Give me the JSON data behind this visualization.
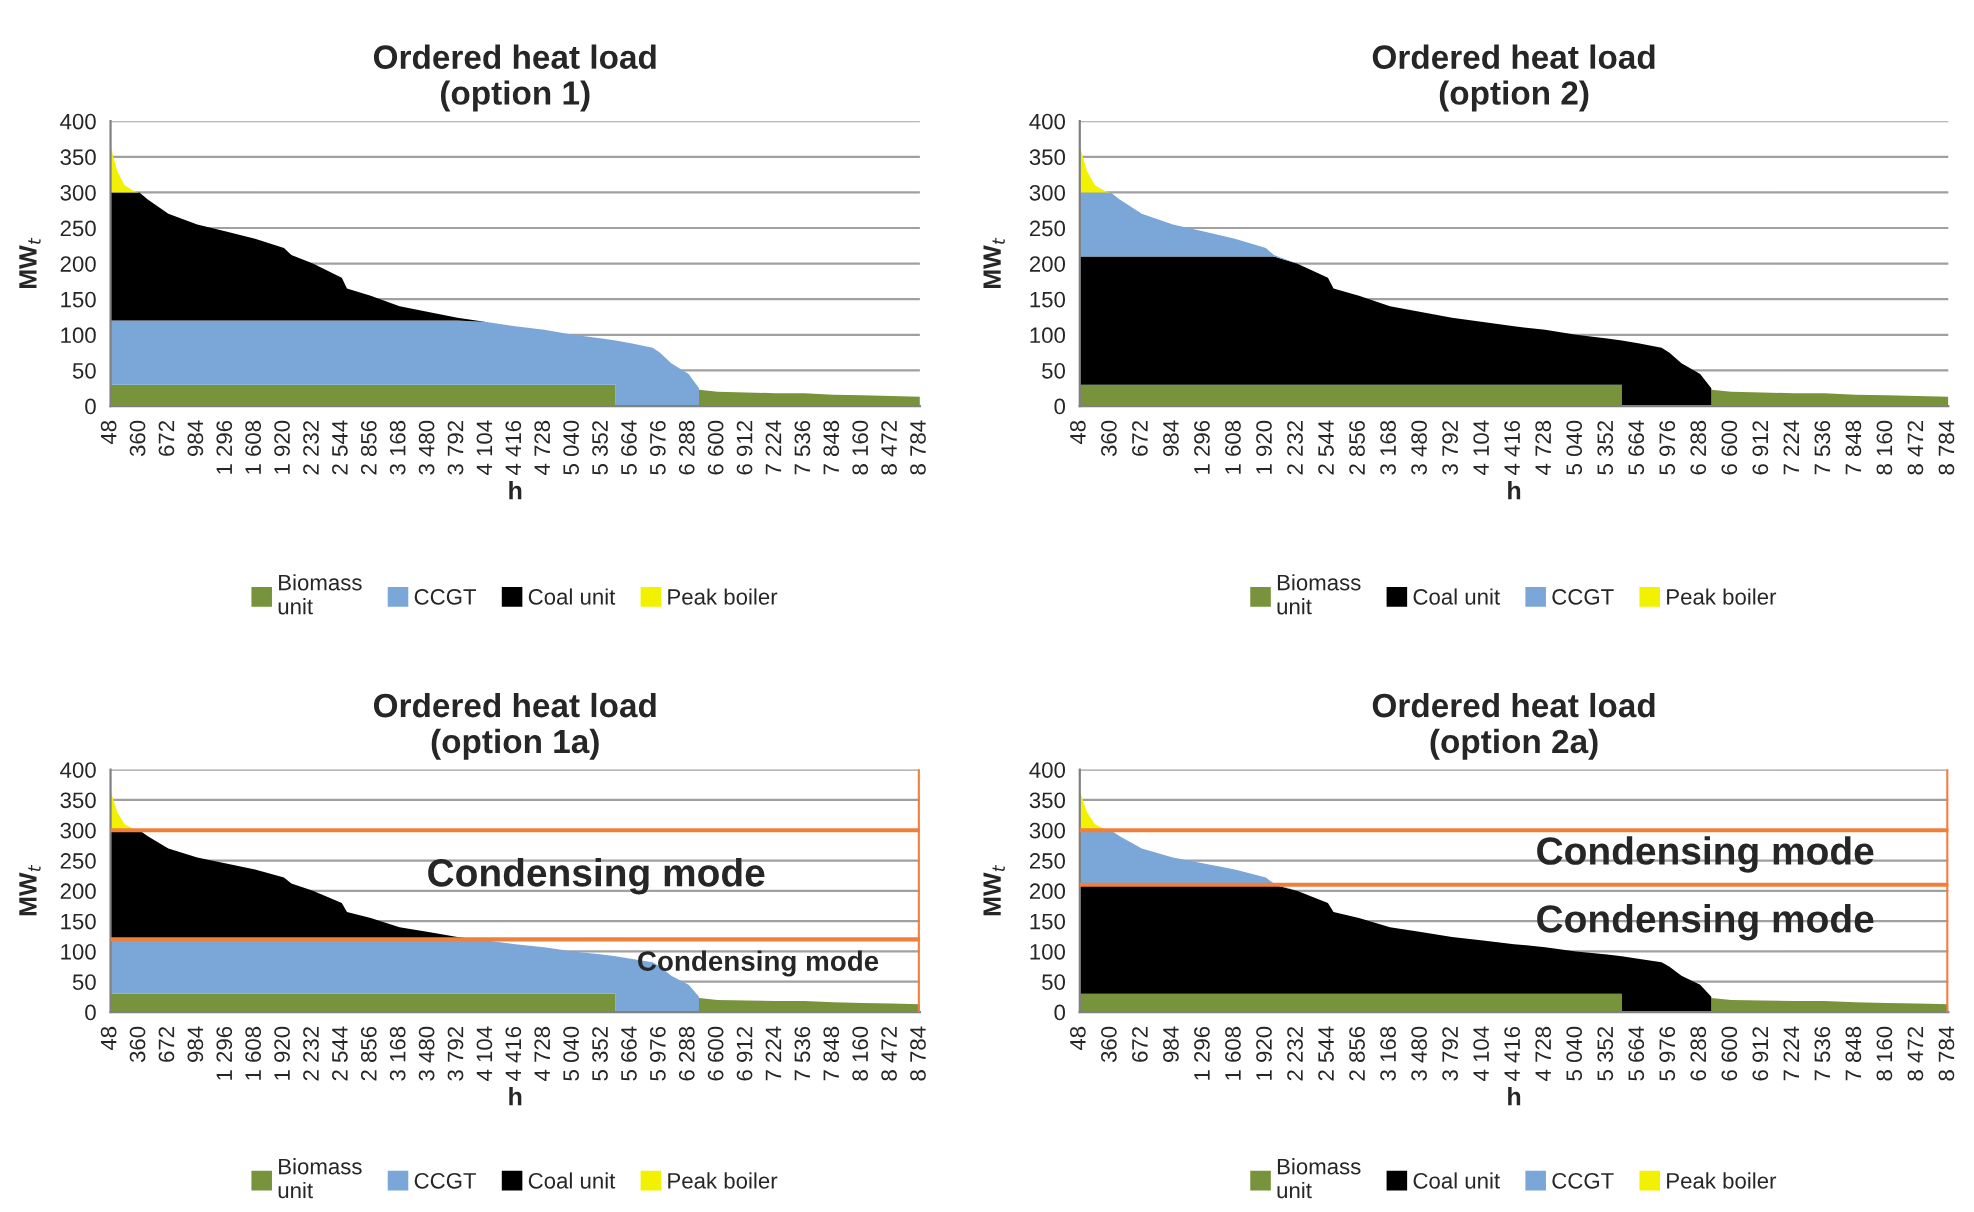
{
  "chart_data": [
    {
      "type": "area",
      "stacked": true,
      "title": "Ordered heat load\n(option 1)",
      "xlabel": "h",
      "ylabel": "MW$_{t}$",
      "grid": "y",
      "legend": "bottom",
      "x": [
        48,
        120,
        200,
        300,
        360,
        450,
        672,
        984,
        1296,
        1608,
        1920,
        2000,
        2232,
        2544,
        2600,
        2856,
        3168,
        3480,
        3792,
        4104,
        4416,
        4728,
        5040,
        5352,
        5500,
        5500,
        5664,
        5900,
        5976,
        6100,
        6288,
        6400,
        6400,
        6600,
        6912,
        7224,
        7536,
        7848,
        8160,
        8472,
        8784
      ],
      "series": [
        {
          "name": "Biomass\nunit",
          "color": "#77933c",
          "values": [
            30,
            30,
            30,
            30,
            30,
            30,
            30,
            30,
            30,
            30,
            30,
            30,
            30,
            30,
            30,
            30,
            30,
            30,
            30,
            30,
            30,
            30,
            30,
            30,
            30,
            0,
            0,
            0,
            0,
            0,
            0,
            0,
            23,
            20,
            19,
            18,
            18,
            16,
            15,
            14,
            13
          ]
        },
        {
          "name": "CCGT",
          "color": "#7aa6d8",
          "values": [
            90,
            90,
            90,
            90,
            90,
            90,
            90,
            90,
            90,
            90,
            90,
            90,
            90,
            90,
            90,
            90,
            90,
            90,
            90,
            88,
            82,
            77,
            70,
            65,
            62,
            92,
            88,
            82,
            75,
            60,
            45,
            25,
            0,
            0,
            0,
            0,
            0,
            0,
            0,
            0,
            0
          ]
        },
        {
          "name": "Coal unit",
          "color": "#000000",
          "values": [
            180,
            180,
            180,
            180,
            180,
            170,
            150,
            135,
            125,
            115,
            102,
            92,
            80,
            60,
            45,
            35,
            20,
            12,
            4,
            0,
            0,
            0,
            0,
            0,
            0,
            0,
            0,
            0,
            0,
            0,
            0,
            0,
            0,
            0,
            0,
            0,
            0,
            0,
            0,
            0,
            0
          ]
        },
        {
          "name": "Peak boiler",
          "color": "#f2f200",
          "values": [
            65,
            30,
            10,
            2,
            0,
            0,
            0,
            0,
            0,
            0,
            0,
            0,
            0,
            0,
            0,
            0,
            0,
            0,
            0,
            0,
            0,
            0,
            0,
            0,
            0,
            0,
            0,
            0,
            0,
            0,
            0,
            0,
            0,
            0,
            0,
            0,
            0,
            0,
            0,
            0,
            0
          ]
        }
      ],
      "xlim": [
        48,
        8784
      ],
      "ylim": [
        0,
        400
      ],
      "yticks": [
        0,
        50,
        100,
        150,
        200,
        250,
        300,
        350,
        400
      ],
      "xticks": [
        48,
        360,
        672,
        984,
        {
          "value": 1296,
          "label": "1 296"
        },
        {
          "value": 1608,
          "label": "1 608"
        },
        {
          "value": 1920,
          "label": "1 920"
        },
        {
          "value": 2232,
          "label": "2 232"
        },
        {
          "value": 2544,
          "label": "2 544"
        },
        {
          "value": 2856,
          "label": "2 856"
        },
        {
          "value": 3168,
          "label": "3 168"
        },
        {
          "value": 3480,
          "label": "3 480"
        },
        {
          "value": 3792,
          "label": "3 792"
        },
        {
          "value": 4104,
          "label": "4 104"
        },
        {
          "value": 4416,
          "label": "4 416"
        },
        {
          "value": 4728,
          "label": "4 728"
        },
        {
          "value": 5040,
          "label": "5 040"
        },
        {
          "value": 5352,
          "label": "5 352"
        },
        {
          "value": 5664,
          "label": "5 664"
        },
        {
          "value": 5976,
          "label": "5 976"
        },
        {
          "value": 6288,
          "label": "6 288"
        },
        {
          "value": 6600,
          "label": "6 600"
        },
        {
          "value": 6912,
          "label": "6 912"
        },
        {
          "value": 7224,
          "label": "7 224"
        },
        {
          "value": 7536,
          "label": "7 536"
        },
        {
          "value": 7848,
          "label": "7 848"
        },
        {
          "value": 8160,
          "label": "8 160"
        },
        {
          "value": 8472,
          "label": "8 472"
        },
        {
          "value": 8784,
          "label": "8 784"
        }
      ]
    },
    {
      "type": "area",
      "stacked": true,
      "title": "Ordered heat load\n(option 2)",
      "xlabel": "h",
      "ylabel": "MW$_{t}$",
      "grid": "y",
      "legend": "bottom",
      "x": [
        48,
        120,
        200,
        300,
        360,
        450,
        672,
        984,
        1296,
        1608,
        1920,
        2000,
        2232,
        2544,
        2600,
        2856,
        3168,
        3480,
        3792,
        4104,
        4416,
        4728,
        5040,
        5352,
        5500,
        5500,
        5664,
        5900,
        5976,
        6100,
        6288,
        6400,
        6400,
        6600,
        6912,
        7224,
        7536,
        7848,
        8160,
        8472,
        8784
      ],
      "series": [
        {
          "name": "Biomass\nunit",
          "color": "#77933c",
          "values": [
            30,
            30,
            30,
            30,
            30,
            30,
            30,
            30,
            30,
            30,
            30,
            30,
            30,
            30,
            30,
            30,
            30,
            30,
            30,
            30,
            30,
            30,
            30,
            30,
            30,
            0,
            0,
            0,
            0,
            0,
            0,
            0,
            23,
            20,
            19,
            18,
            18,
            16,
            15,
            14,
            13
          ]
        },
        {
          "name": "Coal unit",
          "color": "#000000",
          "values": [
            180,
            180,
            180,
            180,
            180,
            180,
            180,
            180,
            180,
            180,
            180,
            180,
            170,
            150,
            135,
            125,
            110,
            102,
            94,
            88,
            82,
            77,
            70,
            65,
            62,
            92,
            88,
            82,
            75,
            60,
            45,
            25,
            0,
            0,
            0,
            0,
            0,
            0,
            0,
            0,
            0
          ]
        },
        {
          "name": "CCGT",
          "color": "#7aa6d8",
          "values": [
            90,
            90,
            90,
            90,
            90,
            80,
            60,
            45,
            35,
            25,
            12,
            2,
            0,
            0,
            0,
            0,
            0,
            0,
            0,
            0,
            0,
            0,
            0,
            0,
            0,
            0,
            0,
            0,
            0,
            0,
            0,
            0,
            0,
            0,
            0,
            0,
            0,
            0,
            0,
            0,
            0
          ]
        },
        {
          "name": "Peak boiler",
          "color": "#f2f200",
          "values": [
            65,
            30,
            10,
            2,
            0,
            0,
            0,
            0,
            0,
            0,
            0,
            0,
            0,
            0,
            0,
            0,
            0,
            0,
            0,
            0,
            0,
            0,
            0,
            0,
            0,
            0,
            0,
            0,
            0,
            0,
            0,
            0,
            0,
            0,
            0,
            0,
            0,
            0,
            0,
            0,
            0
          ]
        }
      ],
      "xlim": [
        48,
        8784
      ],
      "ylim": [
        0,
        400
      ],
      "yticks": [
        0,
        50,
        100,
        150,
        200,
        250,
        300,
        350,
        400
      ],
      "xticks": [
        48,
        360,
        672,
        984,
        {
          "value": 1296,
          "label": "1 296"
        },
        {
          "value": 1608,
          "label": "1 608"
        },
        {
          "value": 1920,
          "label": "1 920"
        },
        {
          "value": 2232,
          "label": "2 232"
        },
        {
          "value": 2544,
          "label": "2 544"
        },
        {
          "value": 2856,
          "label": "2 856"
        },
        {
          "value": 3168,
          "label": "3 168"
        },
        {
          "value": 3480,
          "label": "3 480"
        },
        {
          "value": 3792,
          "label": "3 792"
        },
        {
          "value": 4104,
          "label": "4 104"
        },
        {
          "value": 4416,
          "label": "4 416"
        },
        {
          "value": 4728,
          "label": "4 728"
        },
        {
          "value": 5040,
          "label": "5 040"
        },
        {
          "value": 5352,
          "label": "5 352"
        },
        {
          "value": 5664,
          "label": "5 664"
        },
        {
          "value": 5976,
          "label": "5 976"
        },
        {
          "value": 6288,
          "label": "6 288"
        },
        {
          "value": 6600,
          "label": "6 600"
        },
        {
          "value": 6912,
          "label": "6 912"
        },
        {
          "value": 7224,
          "label": "7 224"
        },
        {
          "value": 7536,
          "label": "7 536"
        },
        {
          "value": 7848,
          "label": "7 848"
        },
        {
          "value": 8160,
          "label": "8 160"
        },
        {
          "value": 8472,
          "label": "8 472"
        },
        {
          "value": 8784,
          "label": "8 784"
        }
      ]
    },
    {
      "type": "area",
      "stacked": true,
      "title": "Ordered heat load\n(option 1a)",
      "xlabel": "h",
      "ylabel": "MW$_{t}$",
      "grid": "y",
      "legend": "bottom",
      "x": [
        48,
        120,
        200,
        300,
        360,
        450,
        672,
        984,
        1296,
        1608,
        1920,
        2000,
        2232,
        2544,
        2600,
        2856,
        3168,
        3480,
        3792,
        4104,
        4416,
        4728,
        5040,
        5352,
        5500,
        5500,
        5664,
        5900,
        5976,
        6100,
        6288,
        6400,
        6400,
        6600,
        6912,
        7224,
        7536,
        7848,
        8160,
        8472,
        8784
      ],
      "series": [
        {
          "name": "Biomass\nunit",
          "color": "#77933c",
          "values": [
            30,
            30,
            30,
            30,
            30,
            30,
            30,
            30,
            30,
            30,
            30,
            30,
            30,
            30,
            30,
            30,
            30,
            30,
            30,
            30,
            30,
            30,
            30,
            30,
            30,
            0,
            0,
            0,
            0,
            0,
            0,
            0,
            23,
            20,
            19,
            18,
            18,
            16,
            15,
            14,
            13
          ]
        },
        {
          "name": "CCGT",
          "color": "#7aa6d8",
          "values": [
            90,
            90,
            90,
            90,
            90,
            90,
            90,
            90,
            90,
            90,
            90,
            90,
            90,
            90,
            90,
            90,
            90,
            90,
            90,
            88,
            82,
            77,
            70,
            65,
            62,
            92,
            88,
            82,
            75,
            60,
            45,
            25,
            0,
            0,
            0,
            0,
            0,
            0,
            0,
            0,
            0
          ]
        },
        {
          "name": "Coal unit",
          "color": "#000000",
          "values": [
            180,
            180,
            180,
            180,
            180,
            170,
            150,
            135,
            125,
            115,
            102,
            92,
            80,
            60,
            45,
            35,
            20,
            12,
            4,
            0,
            0,
            0,
            0,
            0,
            0,
            0,
            0,
            0,
            0,
            0,
            0,
            0,
            0,
            0,
            0,
            0,
            0,
            0,
            0,
            0,
            0
          ]
        },
        {
          "name": "Peak boiler",
          "color": "#f2f200",
          "values": [
            65,
            30,
            10,
            2,
            0,
            0,
            0,
            0,
            0,
            0,
            0,
            0,
            0,
            0,
            0,
            0,
            0,
            0,
            0,
            0,
            0,
            0,
            0,
            0,
            0,
            0,
            0,
            0,
            0,
            0,
            0,
            0,
            0,
            0,
            0,
            0,
            0,
            0,
            0,
            0,
            0
          ]
        }
      ],
      "ref_lines": [
        {
          "axis": "y",
          "value": 300,
          "color": "#f07f3c"
        },
        {
          "axis": "y",
          "value": 120,
          "color": "#f07f3c"
        },
        {
          "axis": "x",
          "value": 8784,
          "color": "#f07f3c"
        }
      ],
      "annotations": [
        "Condensing mode",
        "Condensing mode"
      ],
      "xlim": [
        48,
        8784
      ],
      "ylim": [
        0,
        400
      ],
      "yticks": [
        0,
        50,
        100,
        150,
        200,
        250,
        300,
        350,
        400
      ],
      "xticks": [
        48,
        360,
        672,
        984,
        {
          "value": 1296,
          "label": "1 296"
        },
        {
          "value": 1608,
          "label": "1 608"
        },
        {
          "value": 1920,
          "label": "1 920"
        },
        {
          "value": 2232,
          "label": "2 232"
        },
        {
          "value": 2544,
          "label": "2 544"
        },
        {
          "value": 2856,
          "label": "2 856"
        },
        {
          "value": 3168,
          "label": "3 168"
        },
        {
          "value": 3480,
          "label": "3 480"
        },
        {
          "value": 3792,
          "label": "3 792"
        },
        {
          "value": 4104,
          "label": "4 104"
        },
        {
          "value": 4416,
          "label": "4 416"
        },
        {
          "value": 4728,
          "label": "4 728"
        },
        {
          "value": 5040,
          "label": "5 040"
        },
        {
          "value": 5352,
          "label": "5 352"
        },
        {
          "value": 5664,
          "label": "5 664"
        },
        {
          "value": 5976,
          "label": "5 976"
        },
        {
          "value": 6288,
          "label": "6 288"
        },
        {
          "value": 6600,
          "label": "6 600"
        },
        {
          "value": 6912,
          "label": "6 912"
        },
        {
          "value": 7224,
          "label": "7 224"
        },
        {
          "value": 7536,
          "label": "7 536"
        },
        {
          "value": 7848,
          "label": "7 848"
        },
        {
          "value": 8160,
          "label": "8 160"
        },
        {
          "value": 8472,
          "label": "8 472"
        },
        {
          "value": 8784,
          "label": "8 784"
        }
      ]
    },
    {
      "type": "area",
      "stacked": true,
      "title": "Ordered heat load\n(option 2a)",
      "xlabel": "h",
      "ylabel": "MW$_{t}$",
      "grid": "y",
      "legend": "bottom",
      "x": [
        48,
        120,
        200,
        300,
        360,
        450,
        672,
        984,
        1296,
        1608,
        1920,
        2000,
        2232,
        2544,
        2600,
        2856,
        3168,
        3480,
        3792,
        4104,
        4416,
        4728,
        5040,
        5352,
        5500,
        5500,
        5664,
        5900,
        5976,
        6100,
        6288,
        6400,
        6400,
        6600,
        6912,
        7224,
        7536,
        7848,
        8160,
        8472,
        8784
      ],
      "series": [
        {
          "name": "Biomass\nunit",
          "color": "#77933c",
          "values": [
            30,
            30,
            30,
            30,
            30,
            30,
            30,
            30,
            30,
            30,
            30,
            30,
            30,
            30,
            30,
            30,
            30,
            30,
            30,
            30,
            30,
            30,
            30,
            30,
            30,
            0,
            0,
            0,
            0,
            0,
            0,
            0,
            23,
            20,
            19,
            18,
            18,
            16,
            15,
            14,
            13
          ]
        },
        {
          "name": "Coal unit",
          "color": "#000000",
          "values": [
            180,
            180,
            180,
            180,
            180,
            180,
            180,
            180,
            180,
            180,
            180,
            180,
            170,
            150,
            135,
            125,
            110,
            102,
            94,
            88,
            82,
            77,
            70,
            65,
            62,
            92,
            88,
            82,
            75,
            60,
            45,
            25,
            0,
            0,
            0,
            0,
            0,
            0,
            0,
            0,
            0
          ]
        },
        {
          "name": "CCGT",
          "color": "#7aa6d8",
          "values": [
            90,
            90,
            90,
            90,
            90,
            80,
            60,
            45,
            35,
            25,
            12,
            2,
            0,
            0,
            0,
            0,
            0,
            0,
            0,
            0,
            0,
            0,
            0,
            0,
            0,
            0,
            0,
            0,
            0,
            0,
            0,
            0,
            0,
            0,
            0,
            0,
            0,
            0,
            0,
            0,
            0
          ]
        },
        {
          "name": "Peak boiler",
          "color": "#f2f200",
          "values": [
            65,
            30,
            10,
            2,
            0,
            0,
            0,
            0,
            0,
            0,
            0,
            0,
            0,
            0,
            0,
            0,
            0,
            0,
            0,
            0,
            0,
            0,
            0,
            0,
            0,
            0,
            0,
            0,
            0,
            0,
            0,
            0,
            0,
            0,
            0,
            0,
            0,
            0,
            0,
            0,
            0
          ]
        }
      ],
      "ref_lines": [
        {
          "axis": "y",
          "value": 300,
          "color": "#f07f3c"
        },
        {
          "axis": "y",
          "value": 210,
          "color": "#f07f3c"
        },
        {
          "axis": "x",
          "value": 8784,
          "color": "#f07f3c"
        }
      ],
      "annotations": [
        "Condensing mode",
        "Condensing mode"
      ],
      "xlim": [
        48,
        8784
      ],
      "ylim": [
        0,
        400
      ],
      "yticks": [
        0,
        50,
        100,
        150,
        200,
        250,
        300,
        350,
        400
      ],
      "xticks": [
        48,
        360,
        672,
        984,
        {
          "value": 1296,
          "label": "1 296"
        },
        {
          "value": 1608,
          "label": "1 608"
        },
        {
          "value": 1920,
          "label": "1 920"
        },
        {
          "value": 2232,
          "label": "2 232"
        },
        {
          "value": 2544,
          "label": "2 544"
        },
        {
          "value": 2856,
          "label": "2 856"
        },
        {
          "value": 3168,
          "label": "3 168"
        },
        {
          "value": 3480,
          "label": "3 480"
        },
        {
          "value": 3792,
          "label": "3 792"
        },
        {
          "value": 4104,
          "label": "4 104"
        },
        {
          "value": 4416,
          "label": "4 416"
        },
        {
          "value": 4728,
          "label": "4 728"
        },
        {
          "value": 5040,
          "label": "5 040"
        },
        {
          "value": 5352,
          "label": "5 352"
        },
        {
          "value": 5664,
          "label": "5 664"
        },
        {
          "value": 5976,
          "label": "5 976"
        },
        {
          "value": 6288,
          "label": "6 288"
        },
        {
          "value": 6600,
          "label": "6 600"
        },
        {
          "value": 6912,
          "label": "6 912"
        },
        {
          "value": 7224,
          "label": "7 224"
        },
        {
          "value": 7536,
          "label": "7 536"
        },
        {
          "value": 7848,
          "label": "7 848"
        },
        {
          "value": 8160,
          "label": "8 160"
        },
        {
          "value": 8472,
          "label": "8 472"
        },
        {
          "value": 8784,
          "label": "8 784"
        }
      ]
    }
  ]
}
